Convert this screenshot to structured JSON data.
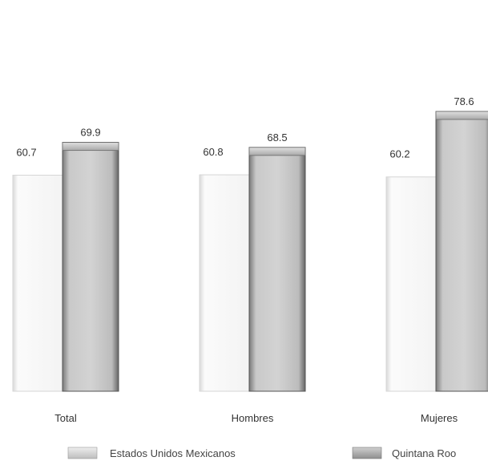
{
  "chart_data": {
    "type": "bar",
    "title": "",
    "xlabel": "",
    "ylabel": "",
    "ylim": [
      0,
      80
    ],
    "grid": false,
    "legend_position": "bottom",
    "categories": [
      "Total",
      "Hombres",
      "Mujeres"
    ],
    "series": [
      {
        "name": "Estados Unidos Mexicanos",
        "values": [
          60.7,
          60.8,
          60.2
        ],
        "color": "#f8f8f8"
      },
      {
        "name": "Quintana Roo",
        "values": [
          69.9,
          68.5,
          78.6
        ],
        "color": "#b8b8b8"
      }
    ],
    "value_labels": [
      [
        "60.7",
        "60.8",
        "60.2"
      ],
      [
        "69.9",
        "68.5",
        "78.6"
      ]
    ]
  }
}
